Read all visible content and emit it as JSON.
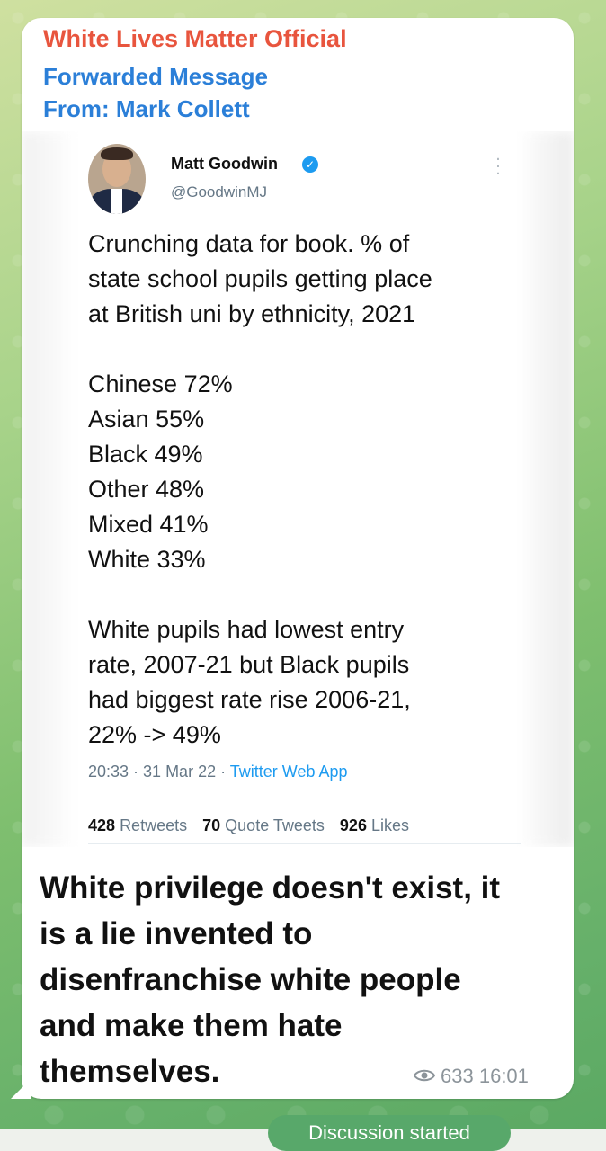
{
  "message": {
    "channel_name": "White Lives Matter Official",
    "forwarded_label": "Forwarded Message",
    "from_label": "From: Mark Collett",
    "text_lines": [
      "White privilege doesn't exist, it",
      "is a lie invented to",
      "disenfranchise white people",
      "and make them hate",
      "themselves."
    ],
    "views": "633",
    "time": "16:01"
  },
  "tweet": {
    "author_name": "Matt Goodwin",
    "handle": "@GoodwinMJ",
    "lines": [
      "Crunching data for book. % of",
      "state school pupils getting place",
      "at British uni by ethnicity, 2021",
      "",
      "Chinese 72%",
      "Asian 55%",
      "Black 49%",
      "Other 48%",
      "Mixed 41%",
      "White 33%",
      "",
      "White pupils had lowest entry",
      "rate, 2007-21 but Black pupils",
      "had biggest rate rise 2006-21,",
      "22% -> 49%"
    ],
    "timestamp": "20:33 · 31 Mar 22 · ",
    "source": "Twitter Web App",
    "stats": {
      "retweets_count": "428",
      "retweets_label": "Retweets",
      "quotes_count": "70",
      "quotes_label": "Quote Tweets",
      "likes_count": "926",
      "likes_label": "Likes"
    }
  },
  "bottom": {
    "comments_button": "Discussion started"
  },
  "icons": {
    "verified": "verified-badge-icon",
    "more": "more-options-icon",
    "views": "eye-icon"
  },
  "colors": {
    "channel_name": "#e8553e",
    "forwarded": "#2b7fd8",
    "twitter_blue": "#1d9bf0",
    "pill": "#58a86a"
  }
}
